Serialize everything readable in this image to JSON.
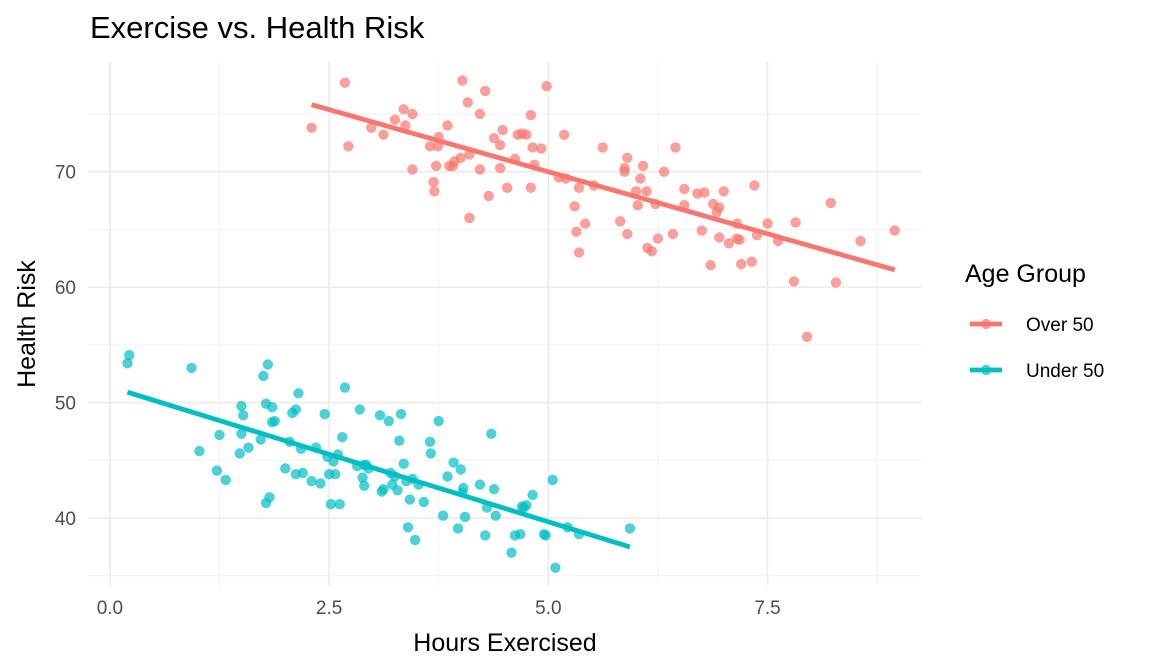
{
  "chart_data": {
    "type": "scatter",
    "title": "Exercise vs. Health Risk",
    "xlabel": "Hours Exercised",
    "ylabel": "Health Risk",
    "xlim": [
      -0.25,
      9.25
    ],
    "ylim": [
      34.2,
      79.5
    ],
    "x_ticks": [
      0,
      2.5,
      5,
      7.5
    ],
    "x_tick_labels": [
      "0.0",
      "2.5",
      "5.0",
      "7.5"
    ],
    "y_ticks": [
      40,
      50,
      60,
      70
    ],
    "y_tick_labels": [
      "40",
      "50",
      "60",
      "70"
    ],
    "grid": true,
    "legend": {
      "title": "Age Group",
      "position": "right"
    },
    "series": [
      {
        "name": "Over 50",
        "color": "#F8766D",
        "trend": {
          "x": [
            2.3,
            8.95
          ],
          "y": [
            75.8,
            61.5
          ]
        },
        "points": [
          [
            2.3,
            73.8
          ],
          [
            2.68,
            77.7
          ],
          [
            2.72,
            72.2
          ],
          [
            2.98,
            73.8
          ],
          [
            3.12,
            73.2
          ],
          [
            3.25,
            74.5
          ],
          [
            3.35,
            75.4
          ],
          [
            3.37,
            74.0
          ],
          [
            3.45,
            75.0
          ],
          [
            3.45,
            70.2
          ],
          [
            3.65,
            72.2
          ],
          [
            3.69,
            69.1
          ],
          [
            3.7,
            68.3
          ],
          [
            3.72,
            70.5
          ],
          [
            3.74,
            72.2
          ],
          [
            3.75,
            73.0
          ],
          [
            3.85,
            74.0
          ],
          [
            3.87,
            70.5
          ],
          [
            3.93,
            70.9
          ],
          [
            3.91,
            70.5
          ],
          [
            4.0,
            71.2
          ],
          [
            4.02,
            77.9
          ],
          [
            4.08,
            76.0
          ],
          [
            4.1,
            71.5
          ],
          [
            4.1,
            66.0
          ],
          [
            4.22,
            75.0
          ],
          [
            4.22,
            70.2
          ],
          [
            4.28,
            77.0
          ],
          [
            4.32,
            67.9
          ],
          [
            4.38,
            72.9
          ],
          [
            4.45,
            72.3
          ],
          [
            4.45,
            70.3
          ],
          [
            4.48,
            73.6
          ],
          [
            4.53,
            68.6
          ],
          [
            4.62,
            71.1
          ],
          [
            4.65,
            73.2
          ],
          [
            4.7,
            73.3
          ],
          [
            4.75,
            73.2
          ],
          [
            4.8,
            74.9
          ],
          [
            4.8,
            68.6
          ],
          [
            4.82,
            72.1
          ],
          [
            4.84,
            70.6
          ],
          [
            4.92,
            72.0
          ],
          [
            4.98,
            77.4
          ],
          [
            5.12,
            69.5
          ],
          [
            5.18,
            73.2
          ],
          [
            5.2,
            69.4
          ],
          [
            5.3,
            67.0
          ],
          [
            5.32,
            64.8
          ],
          [
            5.35,
            63.0
          ],
          [
            5.35,
            68.6
          ],
          [
            5.42,
            65.5
          ],
          [
            5.52,
            68.8
          ],
          [
            5.62,
            72.1
          ],
          [
            5.82,
            65.7
          ],
          [
            5.87,
            70.3
          ],
          [
            5.87,
            70.0
          ],
          [
            5.9,
            71.2
          ],
          [
            5.9,
            64.6
          ],
          [
            6.0,
            68.3
          ],
          [
            6.02,
            67.1
          ],
          [
            6.05,
            69.4
          ],
          [
            6.08,
            70.5
          ],
          [
            6.12,
            68.3
          ],
          [
            6.13,
            63.4
          ],
          [
            6.18,
            63.1
          ],
          [
            6.22,
            67.2
          ],
          [
            6.25,
            64.2
          ],
          [
            6.32,
            70.0
          ],
          [
            6.42,
            64.6
          ],
          [
            6.45,
            72.1
          ],
          [
            6.55,
            68.5
          ],
          [
            6.55,
            67.1
          ],
          [
            6.7,
            68.1
          ],
          [
            6.75,
            64.9
          ],
          [
            6.78,
            68.2
          ],
          [
            6.85,
            61.9
          ],
          [
            6.88,
            67.2
          ],
          [
            6.92,
            66.5
          ],
          [
            6.95,
            66.9
          ],
          [
            6.95,
            64.3
          ],
          [
            7.0,
            68.3
          ],
          [
            7.06,
            63.8
          ],
          [
            7.15,
            65.5
          ],
          [
            7.15,
            64.2
          ],
          [
            7.18,
            64.1
          ],
          [
            7.2,
            62.0
          ],
          [
            7.32,
            62.2
          ],
          [
            7.35,
            68.8
          ],
          [
            7.38,
            64.5
          ],
          [
            7.5,
            65.5
          ],
          [
            7.62,
            64.0
          ],
          [
            7.8,
            60.5
          ],
          [
            7.82,
            65.6
          ],
          [
            7.95,
            55.7
          ],
          [
            8.22,
            67.3
          ],
          [
            8.28,
            60.4
          ],
          [
            8.56,
            64.0
          ],
          [
            8.95,
            64.9
          ]
        ]
      },
      {
        "name": "Under 50",
        "color": "#00BFC4",
        "trend": {
          "x": [
            0.2,
            5.93
          ],
          "y": [
            50.9,
            37.5
          ]
        },
        "points": [
          [
            0.2,
            53.4
          ],
          [
            0.22,
            54.1
          ],
          [
            0.93,
            53.0
          ],
          [
            1.02,
            45.8
          ],
          [
            1.22,
            44.1
          ],
          [
            1.25,
            47.2
          ],
          [
            1.32,
            43.3
          ],
          [
            1.48,
            45.6
          ],
          [
            1.5,
            47.3
          ],
          [
            1.5,
            49.7
          ],
          [
            1.52,
            48.9
          ],
          [
            1.58,
            46.1
          ],
          [
            1.72,
            46.8
          ],
          [
            1.75,
            52.3
          ],
          [
            1.78,
            41.3
          ],
          [
            1.78,
            49.9
          ],
          [
            1.8,
            53.3
          ],
          [
            1.82,
            41.8
          ],
          [
            1.85,
            49.6
          ],
          [
            1.85,
            48.3
          ],
          [
            1.88,
            48.4
          ],
          [
            2.0,
            44.3
          ],
          [
            2.05,
            46.6
          ],
          [
            2.08,
            49.1
          ],
          [
            2.12,
            49.4
          ],
          [
            2.12,
            43.8
          ],
          [
            2.15,
            50.8
          ],
          [
            2.18,
            46.0
          ],
          [
            2.2,
            43.9
          ],
          [
            2.3,
            43.2
          ],
          [
            2.35,
            46.1
          ],
          [
            2.4,
            43.0
          ],
          [
            2.45,
            49.0
          ],
          [
            2.48,
            45.3
          ],
          [
            2.5,
            43.8
          ],
          [
            2.52,
            41.2
          ],
          [
            2.55,
            44.9
          ],
          [
            2.57,
            43.8
          ],
          [
            2.6,
            45.5
          ],
          [
            2.62,
            41.2
          ],
          [
            2.65,
            47.0
          ],
          [
            2.68,
            51.3
          ],
          [
            2.82,
            44.5
          ],
          [
            2.85,
            49.4
          ],
          [
            2.88,
            43.5
          ],
          [
            2.9,
            44.6
          ],
          [
            2.9,
            42.8
          ],
          [
            2.92,
            44.6
          ],
          [
            2.95,
            44.3
          ],
          [
            3.08,
            48.9
          ],
          [
            3.1,
            42.3
          ],
          [
            3.12,
            42.5
          ],
          [
            3.18,
            48.4
          ],
          [
            3.2,
            43.9
          ],
          [
            3.22,
            42.9
          ],
          [
            3.25,
            43.6
          ],
          [
            3.28,
            42.4
          ],
          [
            3.3,
            46.7
          ],
          [
            3.32,
            49.0
          ],
          [
            3.35,
            44.7
          ],
          [
            3.38,
            43.2
          ],
          [
            3.4,
            39.2
          ],
          [
            3.42,
            41.6
          ],
          [
            3.45,
            43.4
          ],
          [
            3.48,
            38.1
          ],
          [
            3.52,
            42.9
          ],
          [
            3.58,
            41.4
          ],
          [
            3.65,
            46.6
          ],
          [
            3.66,
            45.6
          ],
          [
            3.75,
            48.4
          ],
          [
            3.8,
            40.2
          ],
          [
            3.85,
            43.6
          ],
          [
            3.92,
            44.8
          ],
          [
            3.97,
            39.1
          ],
          [
            4.0,
            44.2
          ],
          [
            4.02,
            42.2
          ],
          [
            4.03,
            42.6
          ],
          [
            4.05,
            40.1
          ],
          [
            4.22,
            42.9
          ],
          [
            4.28,
            38.5
          ],
          [
            4.3,
            40.9
          ],
          [
            4.35,
            47.3
          ],
          [
            4.38,
            42.5
          ],
          [
            4.4,
            40.2
          ],
          [
            4.58,
            37.0
          ],
          [
            4.62,
            38.5
          ],
          [
            4.68,
            38.6
          ],
          [
            4.7,
            41.0
          ],
          [
            4.72,
            40.9
          ],
          [
            4.75,
            41.1
          ],
          [
            4.82,
            42.0
          ],
          [
            4.95,
            38.6
          ],
          [
            4.97,
            38.5
          ],
          [
            5.05,
            43.3
          ],
          [
            5.08,
            35.7
          ],
          [
            5.22,
            39.2
          ],
          [
            5.35,
            38.6
          ],
          [
            5.93,
            39.1
          ]
        ]
      }
    ]
  }
}
